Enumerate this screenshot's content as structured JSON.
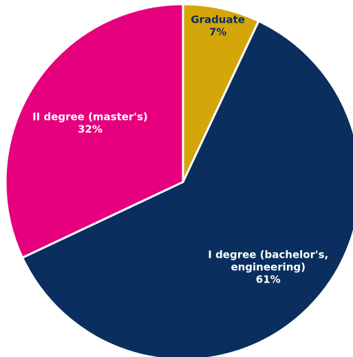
{
  "chart_data": {
    "type": "pie",
    "title": "",
    "start_angle_deg": 0,
    "direction": "clockwise",
    "slices": [
      {
        "label_lines": [
          "Graduate"
        ],
        "value": 7,
        "value_label": "7%",
        "color": "#d4a60a",
        "text_color": "#0a2f5e"
      },
      {
        "label_lines": [
          "I degree (bachelor's,",
          "engineering)"
        ],
        "value": 61,
        "value_label": "61%",
        "color": "#0a2f5e",
        "text_color": "#ffffff"
      },
      {
        "label_lines": [
          "II degree (master's)"
        ],
        "value": 32,
        "value_label": "32%",
        "color": "#e6007e",
        "text_color": "#ffffff"
      }
    ]
  }
}
